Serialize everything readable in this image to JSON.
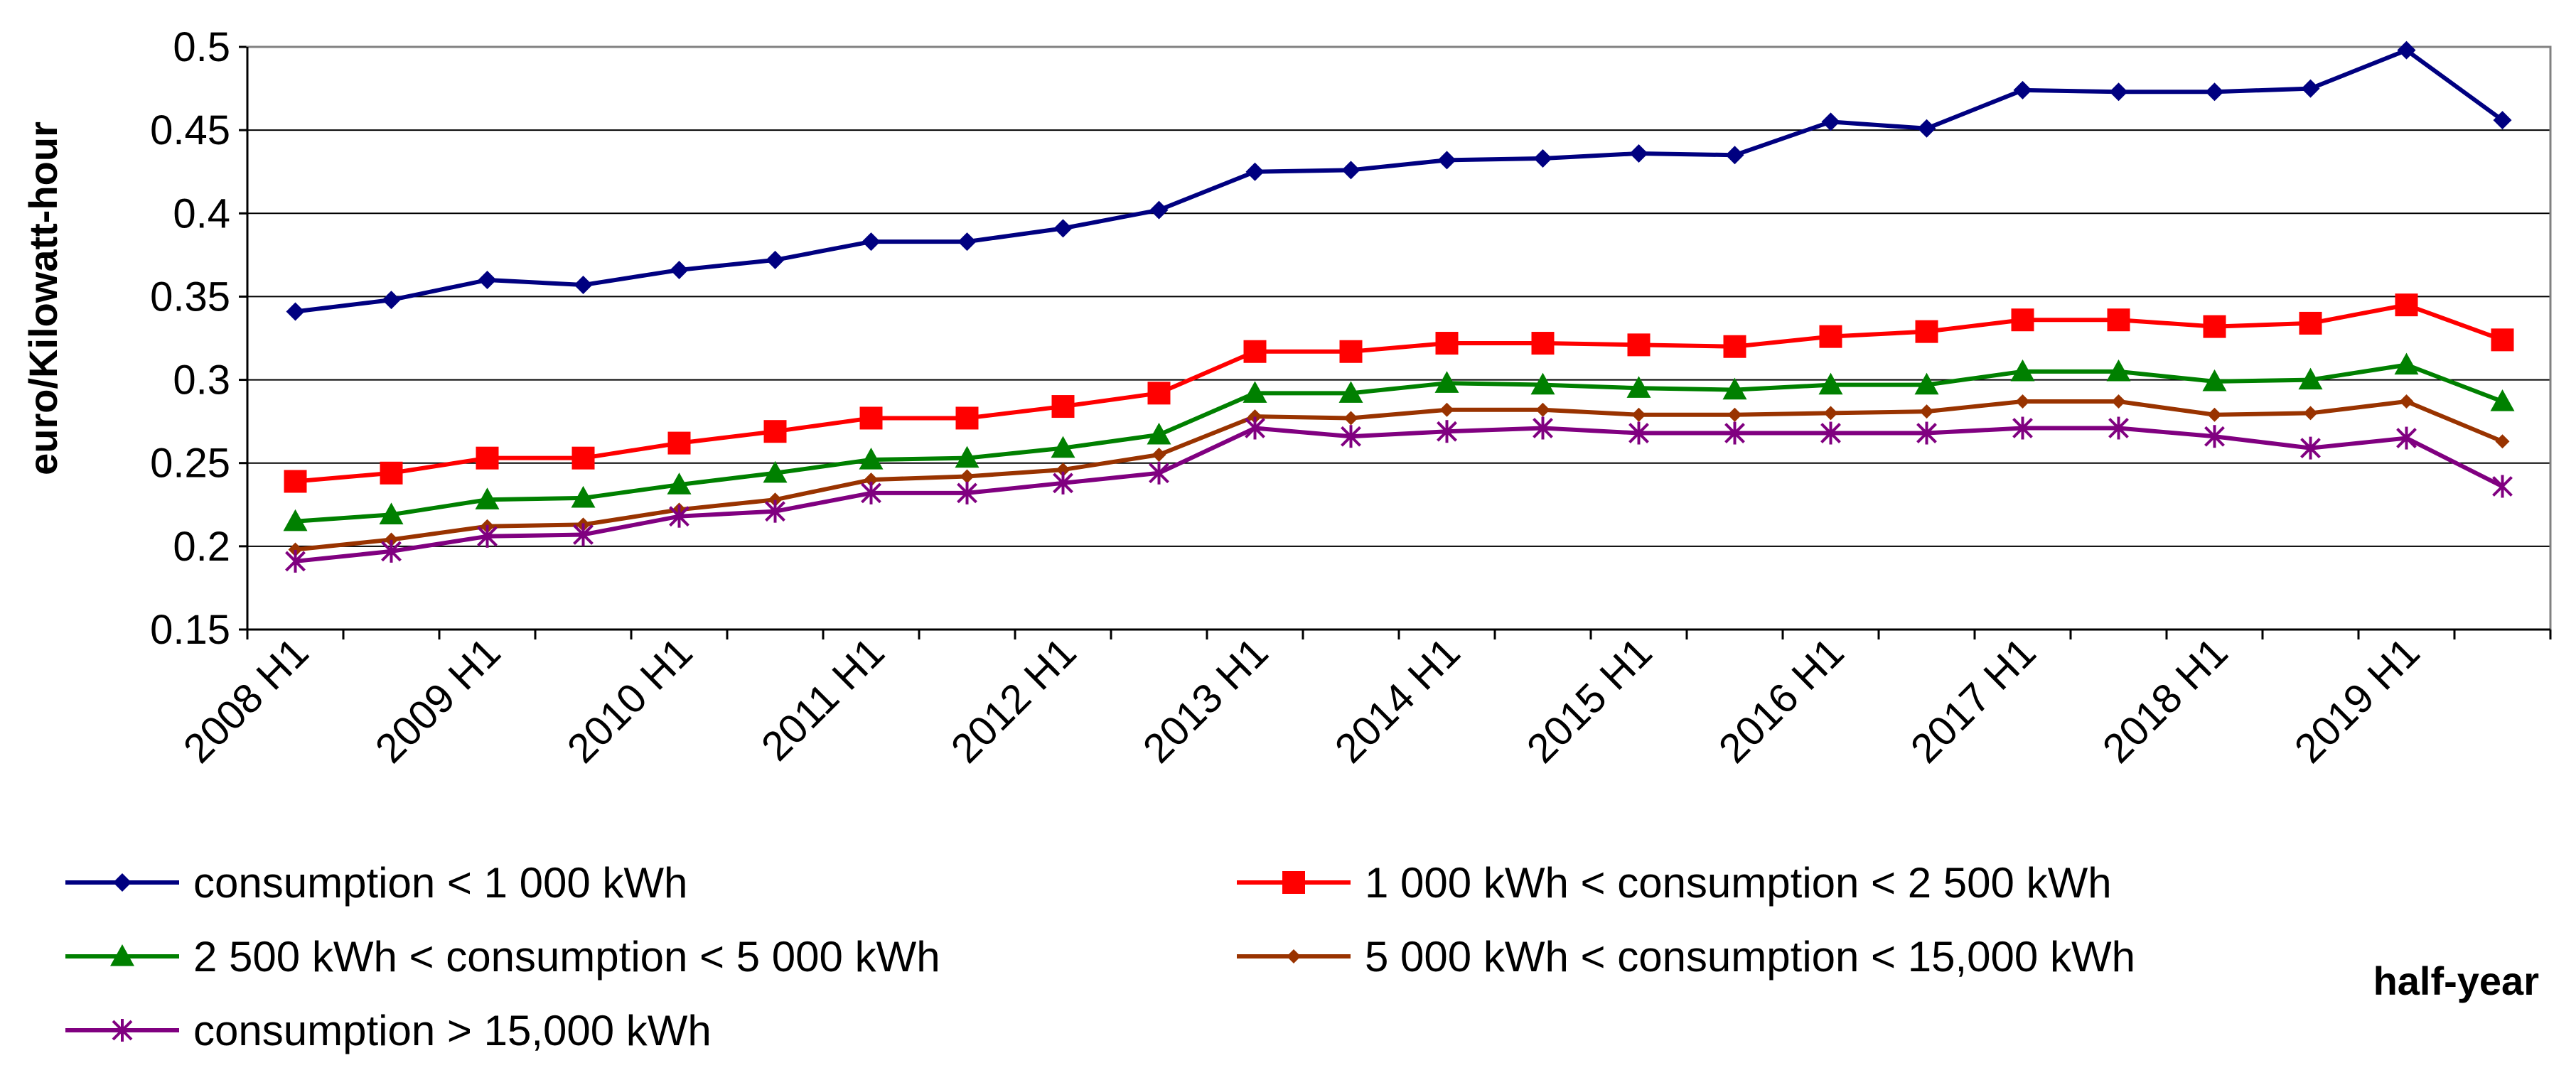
{
  "chart_data": {
    "type": "line",
    "title": "",
    "xlabel": "half-year",
    "ylabel": "euro/Kilowatt-hour",
    "ylim": [
      0.15,
      0.5
    ],
    "yticks": [
      "0.15",
      "0.2",
      "0.25",
      "0.3",
      "0.35",
      "0.4",
      "0.45",
      "0.5"
    ],
    "grid": true,
    "legend_position": "bottom",
    "x_tick_labels": [
      "2008 H1",
      "2009 H1",
      "2010 H1",
      "2011 H1",
      "2012 H1",
      "2013 H1",
      "2014 H1",
      "2015 H1",
      "2016 H1",
      "2017 H1",
      "2018 H1",
      "2019 H1"
    ],
    "x_count": 24,
    "series": [
      {
        "name": "consumption < 1 000 kWh",
        "color": "#000080",
        "marker": "diamond",
        "values": [
          0.341,
          0.348,
          0.36,
          0.357,
          0.366,
          0.372,
          0.383,
          0.383,
          0.391,
          0.402,
          0.425,
          0.426,
          0.432,
          0.433,
          0.436,
          0.435,
          0.455,
          0.451,
          0.474,
          0.473,
          0.473,
          0.475,
          0.498,
          0.456
        ]
      },
      {
        "name": "1 000 kWh < consumption < 2 500 kWh",
        "color": "#ff0000",
        "marker": "square",
        "values": [
          0.239,
          0.244,
          0.253,
          0.253,
          0.262,
          0.269,
          0.277,
          0.277,
          0.284,
          0.292,
          0.317,
          0.317,
          0.322,
          0.322,
          0.321,
          0.32,
          0.326,
          0.329,
          0.336,
          0.336,
          0.332,
          0.334,
          0.345,
          0.324
        ]
      },
      {
        "name": "2 500 kWh < consumption < 5 000 kWh",
        "color": "#008000",
        "marker": "triangle",
        "values": [
          0.215,
          0.219,
          0.228,
          0.229,
          0.237,
          0.244,
          0.252,
          0.253,
          0.259,
          0.267,
          0.292,
          0.292,
          0.298,
          0.297,
          0.295,
          0.294,
          0.297,
          0.297,
          0.305,
          0.305,
          0.299,
          0.3,
          0.309,
          0.287
        ]
      },
      {
        "name": "5 000 kWh < consumption < 15,000 kWh",
        "color": "#993300",
        "marker": "small-diamond",
        "values": [
          0.198,
          0.204,
          0.212,
          0.213,
          0.222,
          0.228,
          0.24,
          0.242,
          0.246,
          0.255,
          0.278,
          0.277,
          0.282,
          0.282,
          0.279,
          0.279,
          0.28,
          0.281,
          0.287,
          0.287,
          0.279,
          0.28,
          0.287,
          0.263
        ]
      },
      {
        "name": "consumption > 15,000 kWh",
        "color": "#800080",
        "marker": "star",
        "values": [
          0.191,
          0.197,
          0.206,
          0.207,
          0.218,
          0.221,
          0.232,
          0.232,
          0.238,
          0.244,
          0.271,
          0.266,
          0.269,
          0.271,
          0.268,
          0.268,
          0.268,
          0.268,
          0.271,
          0.271,
          0.266,
          0.259,
          0.265,
          0.236
        ]
      }
    ]
  }
}
